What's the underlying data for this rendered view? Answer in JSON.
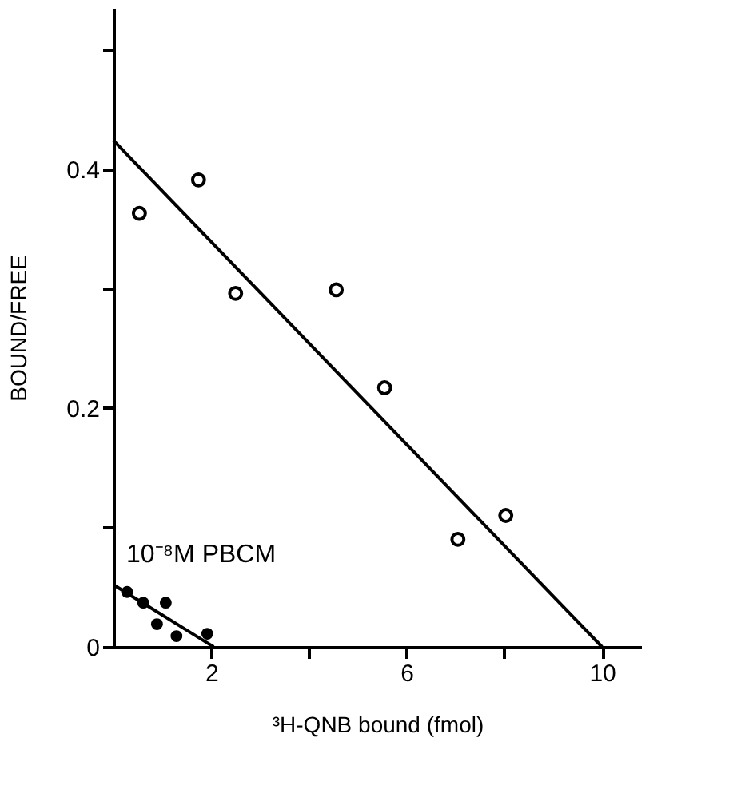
{
  "chart_data": {
    "type": "scatter",
    "xlabel": "³H-QNB bound (fmol)",
    "ylabel": "BOUND/FREE",
    "xlim": [
      0,
      10.8
    ],
    "ylim": [
      0,
      0.535
    ],
    "xticks": [
      2,
      {
        "value": 4,
        "label": null
      },
      6,
      {
        "value": 8,
        "label": null
      },
      10
    ],
    "yticks": [
      0,
      {
        "value": 0.1,
        "label": null
      },
      0.2,
      {
        "value": 0.3,
        "label": null
      },
      0.4,
      {
        "value": 0.5,
        "label": null
      }
    ],
    "grid": false,
    "marker": "circle",
    "series": [
      {
        "color": "#000000",
        "x": [
          0.53,
          1.74,
          2.5,
          4.56,
          5.55,
          7.05,
          8.03
        ],
        "values": [
          0.363,
          0.391,
          0.296,
          0.299,
          0.217,
          0.09,
          0.11
        ]
      },
      {
        "type": "line",
        "marker": "none",
        "color": "#000000",
        "x": [
          0,
          10
        ],
        "values": [
          0.424,
          0
        ]
      },
      {
        "color": "#000000",
        "x": [
          0.28,
          0.61,
          1.07,
          0.89,
          1.29,
          1.92
        ],
        "values": [
          0.046,
          0.037,
          0.037,
          0.019,
          0.009,
          0.011
        ]
      },
      {
        "type": "line",
        "marker": "none",
        "color": "#000000",
        "x": [
          0,
          2.05
        ],
        "values": [
          0.052,
          0
        ]
      }
    ],
    "annotations": [
      "10⁻⁸M PBCM"
    ]
  }
}
